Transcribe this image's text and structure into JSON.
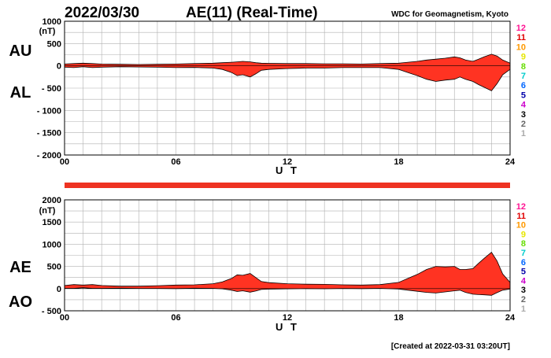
{
  "header": {
    "date": "2022/03/30",
    "title": "AE(11) (Real-Time)",
    "source": "WDC for Geomagnetism, Kyoto"
  },
  "footer": {
    "created": "[Created at 2022-03-31 03:20UT]"
  },
  "colors": {
    "fill": "#ff3322",
    "bar": "#ee3322",
    "grid": "#b0b0b0",
    "axis": "#000000"
  },
  "station_counts": {
    "labels": [
      "12",
      "11",
      "10",
      "9",
      "8",
      "7",
      "6",
      "5",
      "4",
      "3",
      "2",
      "1"
    ],
    "colors": [
      "#ff1493",
      "#e00000",
      "#ff9900",
      "#e6e600",
      "#66dd00",
      "#00cccc",
      "#0066ff",
      "#0000aa",
      "#cc00cc",
      "#000000",
      "#666666",
      "#aaaaaa"
    ]
  },
  "chart_data": [
    {
      "type": "area",
      "name": "AU/AL panel",
      "series_labels": [
        "AU",
        "AL"
      ],
      "unit": "(nT)",
      "xlabel": "U T",
      "x_ticks": [
        "00",
        "06",
        "12",
        "18",
        "24"
      ],
      "xlim": [
        0,
        24
      ],
      "ylim": [
        -2000,
        1000
      ],
      "y_ticks": [
        "1000",
        "500",
        "0",
        "- 500",
        "- 1000",
        "- 1500",
        "- 2000"
      ],
      "grid": true,
      "x": [
        0,
        0.5,
        1,
        1.5,
        2,
        3,
        4,
        5,
        6,
        7,
        8,
        8.5,
        9,
        9.3,
        9.6,
        10,
        10.3,
        10.6,
        11,
        12,
        13,
        14,
        15,
        16,
        17,
        18,
        18.5,
        19,
        19.5,
        20,
        20.5,
        21,
        21.3,
        21.6,
        22,
        22.3,
        22.6,
        23,
        23.3,
        23.6,
        24
      ],
      "series": [
        {
          "name": "AU",
          "values": [
            40,
            50,
            60,
            50,
            40,
            35,
            30,
            35,
            40,
            50,
            60,
            70,
            80,
            90,
            100,
            90,
            70,
            60,
            55,
            50,
            50,
            45,
            45,
            40,
            50,
            60,
            80,
            100,
            130,
            150,
            170,
            200,
            180,
            130,
            100,
            150,
            200,
            260,
            220,
            130,
            60
          ]
        },
        {
          "name": "AL",
          "values": [
            -30,
            -40,
            -20,
            -40,
            -30,
            -20,
            -25,
            -30,
            -40,
            -35,
            -50,
            -80,
            -150,
            -220,
            -200,
            -250,
            -180,
            -100,
            -80,
            -60,
            -50,
            -50,
            -40,
            -40,
            -40,
            -80,
            -150,
            -220,
            -300,
            -350,
            -320,
            -300,
            -250,
            -300,
            -350,
            -420,
            -480,
            -560,
            -400,
            -200,
            -80
          ]
        }
      ]
    },
    {
      "type": "area",
      "name": "AE/AO panel",
      "series_labels": [
        "AE",
        "AO"
      ],
      "unit": "(nT)",
      "xlabel": "U T",
      "x_ticks": [
        "00",
        "06",
        "12",
        "18",
        "24"
      ],
      "xlim": [
        0,
        24
      ],
      "ylim": [
        -500,
        2000
      ],
      "y_ticks": [
        "2000",
        "1500",
        "1000",
        "500",
        "0",
        "- 500"
      ],
      "grid": true,
      "x": [
        0,
        0.5,
        1,
        1.5,
        2,
        3,
        4,
        5,
        6,
        7,
        8,
        8.5,
        9,
        9.3,
        9.6,
        10,
        10.3,
        10.6,
        11,
        12,
        13,
        14,
        15,
        16,
        17,
        18,
        18.5,
        19,
        19.5,
        20,
        20.5,
        21,
        21.3,
        21.6,
        22,
        22.3,
        22.6,
        23,
        23.3,
        23.6,
        24
      ],
      "series": [
        {
          "name": "AE",
          "values": [
            70,
            90,
            80,
            90,
            70,
            55,
            55,
            65,
            80,
            85,
            110,
            150,
            230,
            310,
            300,
            340,
            250,
            160,
            135,
            110,
            100,
            95,
            85,
            80,
            90,
            140,
            230,
            320,
            430,
            500,
            490,
            500,
            430,
            430,
            450,
            570,
            680,
            820,
            620,
            330,
            140
          ]
        },
        {
          "name": "AO",
          "values": [
            5,
            5,
            20,
            5,
            5,
            8,
            3,
            3,
            0,
            8,
            5,
            -5,
            -35,
            -65,
            -50,
            -80,
            -55,
            -20,
            -12,
            -5,
            0,
            -3,
            3,
            0,
            5,
            -10,
            -35,
            -60,
            -85,
            -100,
            -75,
            -50,
            -35,
            -85,
            -125,
            -135,
            -140,
            -150,
            -90,
            -35,
            -10
          ]
        }
      ]
    }
  ]
}
